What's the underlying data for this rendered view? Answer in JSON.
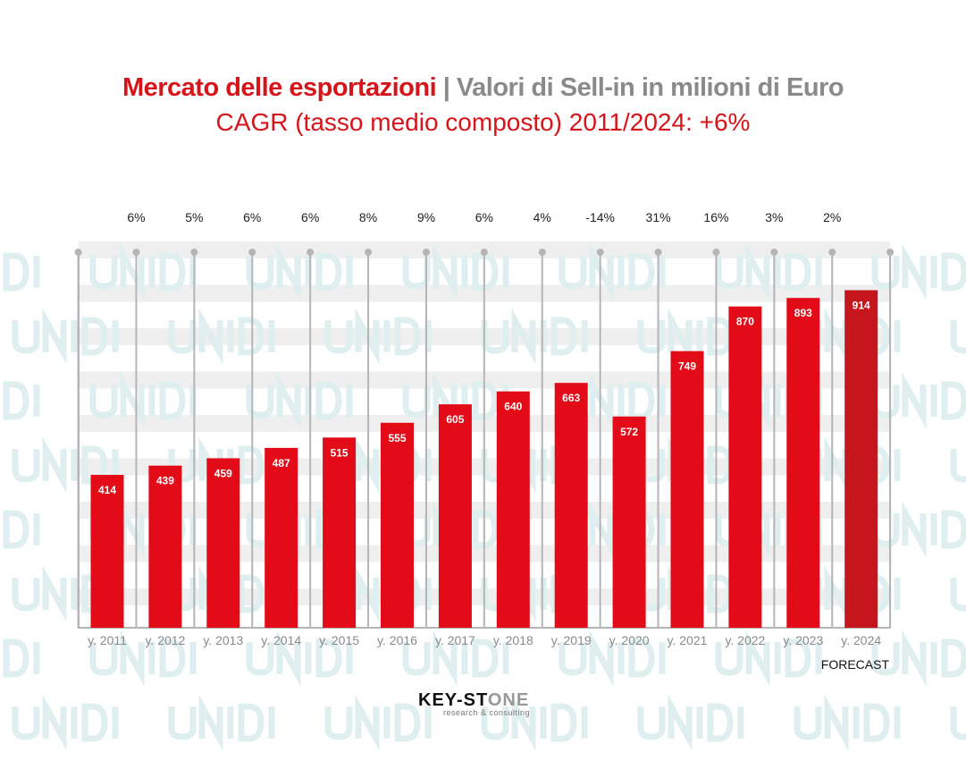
{
  "title": {
    "part1": "Mercato delle esportazioni",
    "part2": "| Valori di Sell-in in milioni di Euro"
  },
  "subtitle": "CAGR (tasso medio composto) 2011/2024: +6%",
  "chart_data": {
    "type": "bar",
    "categories": [
      "y. 2011",
      "y. 2012",
      "y. 2013",
      "y. 2014",
      "y. 2015",
      "y. 2016",
      "y. 2017",
      "y. 2018",
      "y. 2019",
      "y. 2020",
      "y. 2021",
      "y. 2022",
      "y. 2023",
      "y. 2024"
    ],
    "values": [
      414,
      439,
      459,
      487,
      515,
      555,
      605,
      640,
      663,
      572,
      749,
      870,
      893,
      914
    ],
    "growth_labels": [
      "6%",
      "5%",
      "6%",
      "6%",
      "8%",
      "9%",
      "6%",
      "4%",
      "-14%",
      "31%",
      "16%",
      "3%",
      "2%"
    ],
    "forecast_label": "FORECAST",
    "ylim": [
      0,
      1000
    ],
    "grid": false,
    "colors": {
      "bar": "#e30b17",
      "forecast_bar": "#c4161c",
      "growth_line": "#b5b5b5"
    }
  },
  "watermark": "UNIDI",
  "logo": {
    "name_dark": "KEY-ST",
    "name_light": "ONE",
    "tagline": "research & consulting"
  }
}
